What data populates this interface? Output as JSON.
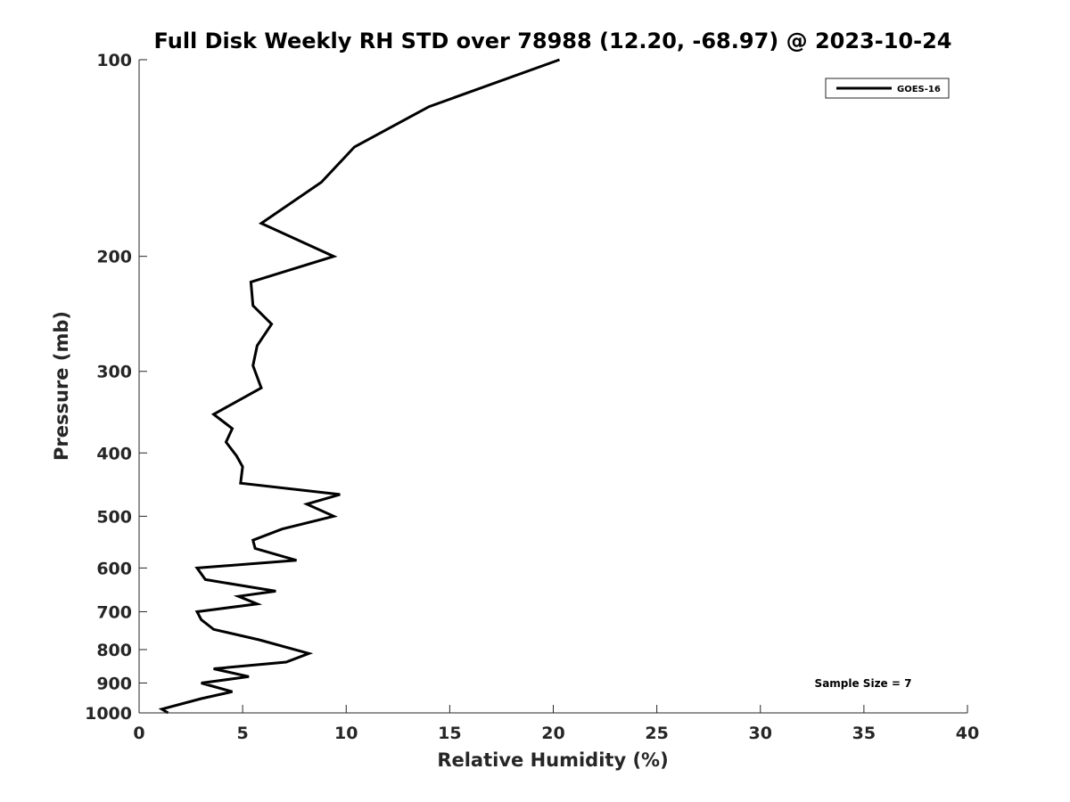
{
  "chart_data": {
    "type": "line",
    "title": "Full Disk Weekly RH STD over 78988 (12.20, -68.97) @ 2023-10-24",
    "xlabel": "Relative Humidity (%)",
    "ylabel": "Pressure (mb)",
    "xlim": [
      0,
      40
    ],
    "ylim": [
      100,
      1000
    ],
    "y_scale": "log",
    "y_reversed": true,
    "x_ticks": [
      0,
      5,
      10,
      15,
      20,
      25,
      30,
      35,
      40
    ],
    "y_ticks": [
      100,
      200,
      300,
      400,
      500,
      600,
      700,
      800,
      900,
      1000
    ],
    "grid": false,
    "legend": {
      "position": "top-right",
      "entries": [
        "GOES-16"
      ]
    },
    "annotations": [
      "Sample Size = 7"
    ],
    "series": [
      {
        "name": "GOES-16",
        "color": "#000000",
        "x": [
          20.3,
          14.0,
          10.4,
          8.8,
          5.9,
          9.4,
          5.4,
          5.5,
          6.4,
          5.7,
          5.5,
          5.9,
          3.6,
          4.5,
          4.2,
          4.7,
          5.0,
          4.9,
          9.7,
          8.1,
          9.4,
          6.9,
          5.5,
          5.6,
          7.6,
          2.8,
          3.2,
          6.6,
          4.8,
          5.7,
          2.8,
          3.0,
          3.6,
          5.8,
          8.2,
          7.1,
          3.6,
          5.3,
          3.0,
          4.5,
          3.0,
          1.1,
          1.4
        ],
        "y": [
          100,
          118,
          136,
          154,
          178,
          200,
          219,
          238,
          254,
          274,
          294,
          318,
          349,
          367,
          385,
          404,
          420,
          445,
          463,
          479,
          500,
          523,
          544,
          560,
          584,
          600,
          625,
          651,
          663,
          681,
          700,
          720,
          745,
          773,
          811,
          836,
          856,
          880,
          900,
          928,
          951,
          987,
          1000
        ]
      }
    ]
  }
}
